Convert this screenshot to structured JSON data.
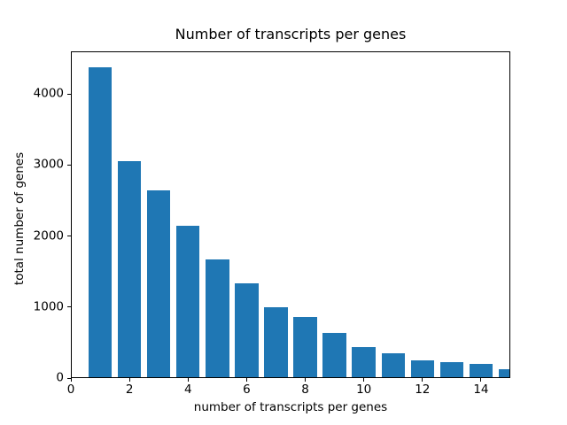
{
  "figure": {
    "background_color": "#ffffff",
    "text_color": "#000000"
  },
  "chart_data": {
    "type": "bar",
    "title": "Number of transcripts per genes",
    "xlabel": "number of transcripts per genes",
    "ylabel": "total number of genes",
    "x": [
      1,
      2,
      3,
      4,
      5,
      6,
      7,
      8,
      9,
      10,
      11,
      12,
      13,
      14,
      15
    ],
    "values": [
      4375,
      3055,
      2645,
      2150,
      1675,
      1330,
      1000,
      855,
      635,
      440,
      350,
      245,
      225,
      195,
      130
    ],
    "bar_color": "#1f77b4",
    "bar_width": 0.8,
    "xlim": [
      0,
      15
    ],
    "ylim": [
      0,
      4600
    ],
    "x_ticks": [
      0,
      2,
      4,
      6,
      8,
      10,
      12,
      14
    ],
    "y_ticks": [
      0,
      1000,
      2000,
      3000,
      4000
    ],
    "grid": false,
    "legend": null
  }
}
